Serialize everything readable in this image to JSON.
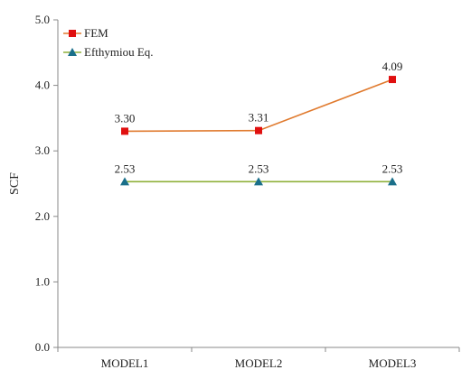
{
  "chart_data": {
    "type": "line",
    "categories": [
      "MODEL1",
      "MODEL2",
      "MODEL3"
    ],
    "ylabel": "SCF",
    "xlabel": "",
    "ylim": [
      0.0,
      5.0
    ],
    "yticks": [
      "0.0",
      "1.0",
      "2.0",
      "3.0",
      "4.0",
      "5.0"
    ],
    "grid": false,
    "legend_position": "top-left",
    "series": [
      {
        "name": "FEM",
        "values": [
          3.3,
          3.31,
          4.09
        ],
        "labels": [
          "3.30",
          "3.31",
          "4.09"
        ],
        "line_color": "#e07a2e",
        "marker_color": "#e01010",
        "marker": "square"
      },
      {
        "name": "Efthymiou Eq.",
        "values": [
          2.53,
          2.53,
          2.53
        ],
        "labels": [
          "2.53",
          "2.53",
          "2.53"
        ],
        "line_color": "#8fb03a",
        "marker_color": "#1a6f8a",
        "marker": "triangle"
      }
    ]
  }
}
